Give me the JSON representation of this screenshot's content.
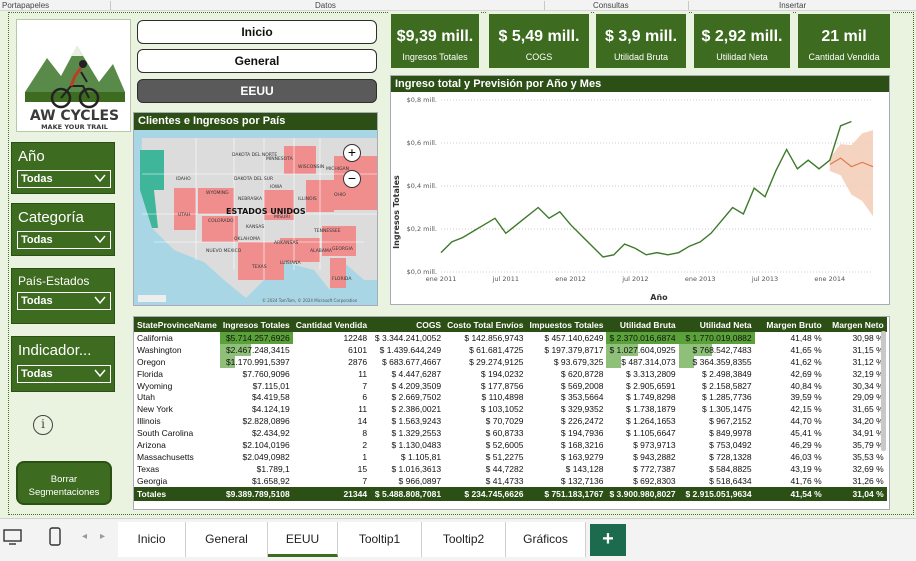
{
  "ribbon": {
    "groups": [
      "Portapapeles",
      "Datos",
      "Consultas",
      "Insertar"
    ]
  },
  "logo": {
    "brand": "AW CYCLES",
    "tagline": "MAKE YOUR TRAIL"
  },
  "nav": {
    "inicio": "Inicio",
    "general": "General",
    "eeuu": "EEUU"
  },
  "kpis": [
    {
      "value": "$9,39 mill.",
      "label": "Ingresos Totales"
    },
    {
      "value": "$ 5,49 mill.",
      "label": "COGS"
    },
    {
      "value": "$ 3,9 mill.",
      "label": "Utilidad Bruta"
    },
    {
      "value": "$ 2,92 mill.",
      "label": "Utilidad Neta"
    },
    {
      "value": "21 mil",
      "label": "Cantidad Vendida"
    }
  ],
  "slicers": {
    "anio": {
      "title": "Año",
      "value": "Todas"
    },
    "categoria": {
      "title": "Categoría",
      "value": "Todas"
    },
    "pais": {
      "title": "País-Estados",
      "value": "Todas"
    },
    "indicador": {
      "title": "Indicador...",
      "value": "Todas"
    }
  },
  "clear_button": {
    "line1": "Borrar",
    "line2": "Segmentaciones"
  },
  "info_icon": "i",
  "map": {
    "title": "Clientes e Ingresos por País",
    "country_label": "ESTADOS UNIDOS",
    "state_labels": [
      "DAKOTA DEL NORTE",
      "DAKOTA DEL SUR",
      "NEBRASKA",
      "KANSAS",
      "OKLAHOMA",
      "TEXAS",
      "NUEVO MEXICO",
      "COLORADO",
      "WYOMING",
      "IDAHO",
      "UTAH",
      "MINNESOTA",
      "IOWA",
      "MISURI",
      "ARKANSAS",
      "LUISIANA",
      "ILLINOIS",
      "WISCONSIN",
      "MICHIGAN",
      "OHIO",
      "TENNESSEE",
      "ALABAMA",
      "GEORGIA",
      "FLORIDA"
    ],
    "attribution": "© 2024 TomTom, © 2024 Microsoft Corporation",
    "zoom_in": "+",
    "zoom_out": "−",
    "colors": {
      "highlight": "#f08e8e",
      "ocean": "#a9d6e5",
      "land": "#dcdcdc",
      "coastal": "#3fb59a"
    }
  },
  "line_chart": {
    "title": "Ingreso total y Previsión por Año y Mes",
    "y_label": "Ingresos Totales",
    "x_label": "Año",
    "y_ticks": [
      "$0,8 mill.",
      "$0,6 mill.",
      "$0,4 mill.",
      "$0,2 mill.",
      "$0,0 mill."
    ],
    "x_ticks": [
      "ene 2011",
      "jul 2011",
      "ene 2012",
      "jul 2012",
      "ene 2013",
      "jul 2013",
      "ene 2014"
    ]
  },
  "chart_data": {
    "type": "line",
    "title": "Ingreso total y Previsión por Año y Mes",
    "xlabel": "Año",
    "ylabel": "Ingresos Totales",
    "ylim": [
      0,
      0.8
    ],
    "y_unit": "mill.",
    "x_range": [
      "2011-01",
      "2014-05"
    ],
    "series": [
      {
        "name": "Ingreso total",
        "color": "#3d7a2a",
        "x": [
          "2011-01",
          "2011-02",
          "2011-03",
          "2011-04",
          "2011-05",
          "2011-06",
          "2011-07",
          "2011-08",
          "2011-09",
          "2011-10",
          "2011-11",
          "2011-12",
          "2012-01",
          "2012-02",
          "2012-03",
          "2012-04",
          "2012-05",
          "2012-06",
          "2012-07",
          "2012-08",
          "2012-09",
          "2012-10",
          "2012-11",
          "2012-12",
          "2013-01",
          "2013-02",
          "2013-03",
          "2013-04",
          "2013-05",
          "2013-06",
          "2013-07",
          "2013-08",
          "2013-09",
          "2013-10",
          "2013-11",
          "2013-12",
          "2014-01",
          "2014-02",
          "2014-03"
        ],
        "values": [
          0.09,
          0.14,
          0.16,
          0.19,
          0.22,
          0.25,
          0.18,
          0.22,
          0.26,
          0.3,
          0.25,
          0.28,
          0.22,
          0.17,
          0.12,
          0.07,
          0.08,
          0.13,
          0.11,
          0.08,
          0.09,
          0.08,
          0.09,
          0.12,
          0.14,
          0.18,
          0.24,
          0.3,
          0.27,
          0.39,
          0.35,
          0.47,
          0.57,
          0.48,
          0.52,
          0.48,
          0.52,
          0.68,
          0.7
        ]
      },
      {
        "name": "Previsión",
        "color": "#e07a50",
        "x": [
          "2014-01",
          "2014-02",
          "2014-03",
          "2014-04",
          "2014-05"
        ],
        "values": [
          0.5,
          0.53,
          0.49,
          0.51,
          0.49
        ]
      }
    ]
  },
  "table": {
    "columns": [
      "StateProvinceName",
      "Ingresos Totales",
      "Cantidad Vendida",
      "COGS",
      "Costo Total Envíos",
      "Impuestos Totales",
      "Utilidad Bruta",
      "Utilidad Neta",
      "Margen Bruto",
      "Margen Neto"
    ],
    "rows": [
      [
        "California",
        "$5.714.257,6926",
        "12248",
        "$ 3.344.241,0052",
        "$ 142.856,9743",
        "$ 457.140,6249",
        "$ 2.370.016,6874",
        "$ 1.770.019,0882",
        "41,48 %",
        "30,98 %"
      ],
      [
        "Washington",
        "$2.467.248,3415",
        "6101",
        "$ 1.439.644,249",
        "$ 61.681,4725",
        "$ 197.379,8717",
        "$ 1.027.604,0925",
        "$ 768.542,7483",
        "41,65 %",
        "31,15 %"
      ],
      [
        "Oregon",
        "$1.170.991,5397",
        "2876",
        "$ 683.677,4667",
        "$ 29.274,9125",
        "$ 93.679,325",
        "$ 487.314,073",
        "$ 364.359,8355",
        "41,62 %",
        "31,12 %"
      ],
      [
        "Florida",
        "$7.760,9096",
        "11",
        "$ 4.447,6287",
        "$ 194,0232",
        "$ 620,8728",
        "$ 3.313,2809",
        "$ 2.498,3849",
        "42,69 %",
        "32,19 %"
      ],
      [
        "Wyoming",
        "$7.115,01",
        "7",
        "$ 4.209,3509",
        "$ 177,8756",
        "$ 569,2008",
        "$ 2.905,6591",
        "$ 2.158,5827",
        "40,84 %",
        "30,34 %"
      ],
      [
        "Utah",
        "$4.419,58",
        "6",
        "$ 2.669,7502",
        "$ 110,4898",
        "$ 353,5664",
        "$ 1.749,8298",
        "$ 1.285,7736",
        "39,59 %",
        "29,09 %"
      ],
      [
        "New York",
        "$4.124,19",
        "11",
        "$ 2.386,0021",
        "$ 103,1052",
        "$ 329,9352",
        "$ 1.738,1879",
        "$ 1.305,1475",
        "42,15 %",
        "31,65 %"
      ],
      [
        "Illinois",
        "$2.828,0896",
        "14",
        "$ 1.563,9243",
        "$ 70,7029",
        "$ 226,2472",
        "$ 1.264,1653",
        "$ 967,2152",
        "44,70 %",
        "34,20 %"
      ],
      [
        "South Carolina",
        "$2.434,92",
        "8",
        "$ 1.329,2553",
        "$ 60,8733",
        "$ 194,7936",
        "$ 1.105,6647",
        "$ 849,9978",
        "45,41 %",
        "34,91 %"
      ],
      [
        "Arizona",
        "$2.104,0196",
        "2",
        "$ 1.130,0483",
        "$ 52,6005",
        "$ 168,3216",
        "$ 973,9713",
        "$ 753,0492",
        "46,29 %",
        "35,79 %"
      ],
      [
        "Massachusetts",
        "$2.049,0982",
        "1",
        "$ 1.105,81",
        "$ 51,2275",
        "$ 163,9279",
        "$ 943,2882",
        "$ 728,1328",
        "46,03 %",
        "35,53 %"
      ],
      [
        "Texas",
        "$1.789,1",
        "15",
        "$ 1.016,3613",
        "$ 44,7282",
        "$ 143,128",
        "$ 772,7387",
        "$ 584,8825",
        "43,19 %",
        "32,69 %"
      ],
      [
        "Georgia",
        "$1.658,92",
        "7",
        "$ 966,0897",
        "$ 41,4733",
        "$ 132,7136",
        "$ 692,8303",
        "$ 518,6434",
        "41,76 %",
        "31,26 %"
      ]
    ],
    "bar_fractions": {
      "ingresos": [
        1.0,
        0.432,
        0.205
      ],
      "utilidad_bruta": [
        1.0,
        0.434,
        0.206
      ],
      "utilidad_neta": [
        1.0,
        0.434,
        0.206
      ]
    },
    "totals": [
      "Totales",
      "$9.389.789,5108",
      "21344",
      "$ 5.488.808,7081",
      "$ 234.745,6626",
      "$ 751.183,1767",
      "$ 3.900.980,8027",
      "$ 2.915.051,9634",
      "41,54 %",
      "31,04 %"
    ]
  },
  "tabs": [
    "Inicio",
    "General",
    "EEUU",
    "Tooltip1",
    "Tooltip2",
    "Gráficos"
  ],
  "tab_add": "+",
  "colors": {
    "brand_green": "#3d6b1f",
    "dark_green": "#2c4f15",
    "canvas": "#eaf2e0",
    "forecast_band": "#f2cdb6"
  }
}
